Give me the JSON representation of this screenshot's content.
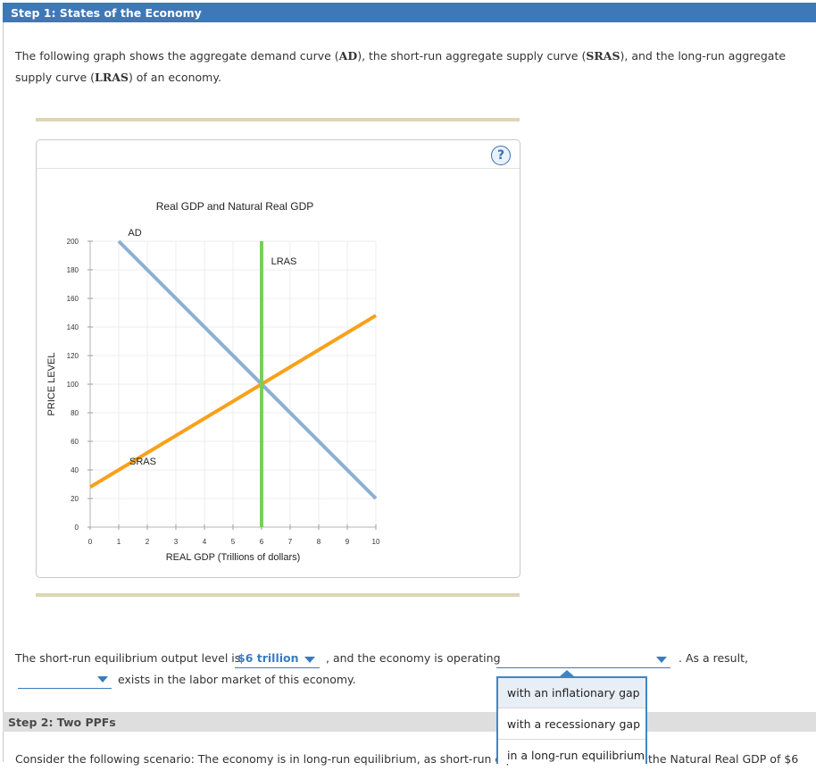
{
  "step1": {
    "title": "Step 1: States of the Economy",
    "intro_parts": [
      "The following graph shows the aggregate demand curve (",
      "AD",
      "), the short-run aggregate supply curve (",
      "SRAS",
      "), and the long-run aggregate supply curve (",
      "LRAS",
      ") of an economy."
    ]
  },
  "graph": {
    "help_label": "?",
    "colors": {
      "ad": "#8ab0d4",
      "sras": "#f7a11a",
      "lras": "#7ccd5b"
    }
  },
  "chart_data": {
    "type": "line",
    "title": "Real GDP and Natural Real GDP",
    "xlabel": "REAL GDP (Trillions of dollars)",
    "ylabel": "PRICE LEVEL",
    "xlim": [
      0,
      10
    ],
    "ylim": [
      0,
      200
    ],
    "x_ticks": [
      "0",
      "1",
      "2",
      "3",
      "4",
      "5",
      "6",
      "7",
      "8",
      "9",
      "10"
    ],
    "y_ticks": [
      "0",
      "20",
      "40",
      "60",
      "80",
      "100",
      "120",
      "140",
      "160",
      "180",
      "200"
    ],
    "grid": true,
    "series": [
      {
        "name": "AD",
        "points": [
          [
            1,
            200
          ],
          [
            10,
            20
          ]
        ]
      },
      {
        "name": "SRAS",
        "points": [
          [
            0,
            28
          ],
          [
            10,
            148
          ]
        ]
      },
      {
        "name": "LRAS",
        "points": [
          [
            6,
            0
          ],
          [
            6,
            200
          ]
        ]
      }
    ]
  },
  "question": {
    "text1": "The short-run equilibrium output level is",
    "dropdown1_value": "$6 trillion",
    "text2": ", and the economy is operating",
    "dropdown2_value": "",
    "text3": ". As a result,",
    "dropdown3_value": "",
    "text4": "exists in the labor market of this economy."
  },
  "menu": {
    "options": [
      "with an inflationary gap",
      "with a recessionary gap",
      "in a long-run equilibrium"
    ]
  },
  "step2": {
    "title": "Step 2: Two PPFs",
    "scenario_left": "Consider the following scenario: The economy is in long-run equilibrium, as short-run eq",
    "scenario_right": "the Natural Real GDP of $6"
  }
}
